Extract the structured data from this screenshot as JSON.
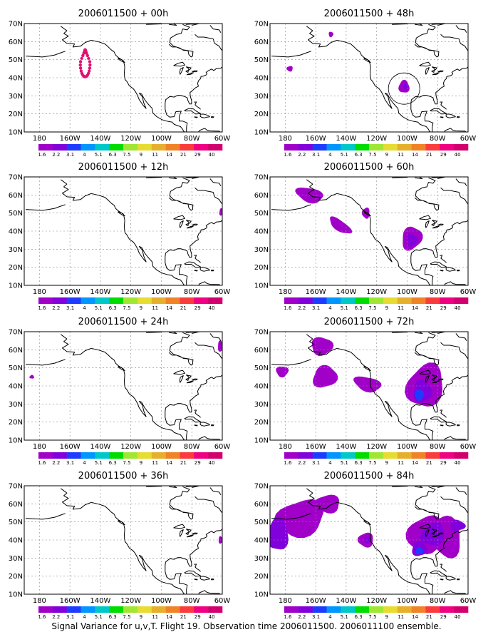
{
  "caption": "Signal Variance for u,v,T. Flight 19. Observation time 2006011500. 2006011100 ensemble.",
  "lon_labels": [
    "180",
    "160W",
    "140W",
    "120W",
    "100W",
    "80W",
    "60W"
  ],
  "lat_labels": [
    "10N",
    "20N",
    "30N",
    "40N",
    "50N",
    "60N",
    "70N"
  ],
  "colorbar": {
    "labels": [
      "1.6",
      "2.2",
      "3.1",
      "4",
      "5.1",
      "6.3",
      "7.5",
      "9",
      "11",
      "14",
      "21",
      "29",
      "40"
    ],
    "colors": [
      "#a000c8",
      "#8200dc",
      "#1e3cff",
      "#0096ff",
      "#00c8c8",
      "#00dc00",
      "#a0e632",
      "#e6dc32",
      "#e6af2d",
      "#f08228",
      "#fa3c3c",
      "#f00082",
      "#d2006e"
    ]
  },
  "panels": [
    {
      "title": "2006011500 + 00h"
    },
    {
      "title": "2006011500 + 48h"
    },
    {
      "title": "2006011500 + 12h"
    },
    {
      "title": "2006011500 + 60h"
    },
    {
      "title": "2006011500 + 24h"
    },
    {
      "title": "2006011500 + 72h"
    },
    {
      "title": "2006011500 + 36h"
    },
    {
      "title": "2006011500 + 84h"
    }
  ],
  "map_extent": {
    "lon_min": -190,
    "lon_max": -60,
    "lat_min": 10,
    "lat_max": 70
  }
}
